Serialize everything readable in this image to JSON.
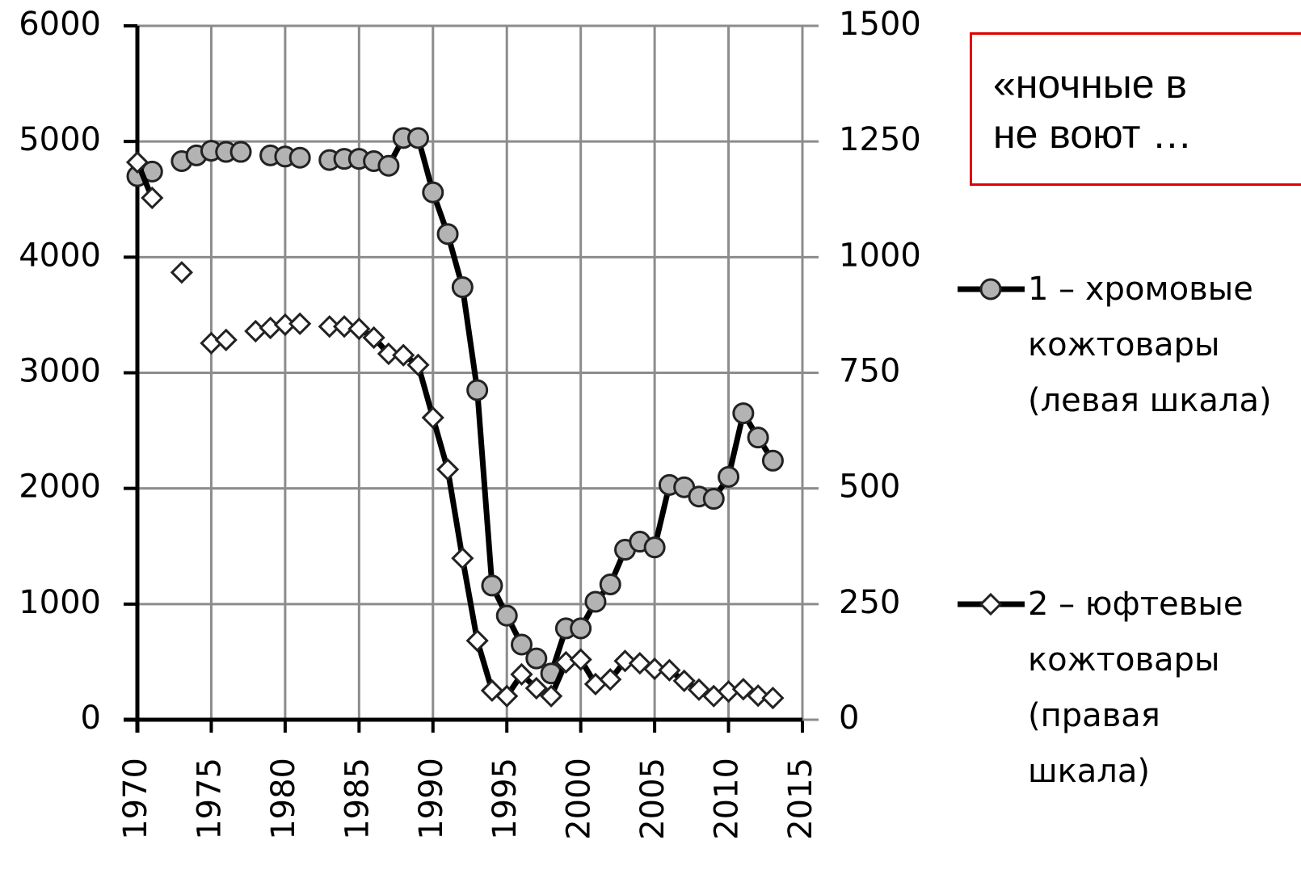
{
  "chart_data": {
    "type": "line",
    "note": [
      "«ночные в",
      "не воют …"
    ],
    "x": [
      1970,
      1971,
      1972,
      1973,
      1974,
      1975,
      1976,
      1977,
      1978,
      1979,
      1980,
      1981,
      1982,
      1983,
      1984,
      1985,
      1986,
      1987,
      1988,
      1989,
      1990,
      1991,
      1992,
      1993,
      1994,
      1995,
      1996,
      1997,
      1998,
      1999,
      2000,
      2001,
      2002,
      2003,
      2004,
      2005,
      2006,
      2007,
      2008,
      2009,
      2010,
      2011,
      2012,
      2013
    ],
    "series": [
      {
        "name": "1 – хромовые кожтовары (левая шкала)",
        "color": "#b3b3b3",
        "marker": "circle",
        "axis": "y",
        "values": [
          4700,
          4740,
          null,
          4830,
          4880,
          4920,
          4910,
          4910,
          null,
          4880,
          4870,
          4860,
          null,
          4840,
          4850,
          4850,
          4830,
          4790,
          5030,
          5030,
          4560,
          4200,
          3740,
          2850,
          1160,
          900,
          650,
          530,
          400,
          790,
          790,
          1020,
          1170,
          1470,
          1540,
          1490,
          2030,
          2010,
          1930,
          1910,
          2100,
          2650,
          2440,
          2240
        ]
      },
      {
        "name": "2 – юфтевые кожтовары (правая шкала)",
        "color": "#ffffff",
        "marker": "diamond",
        "axis": "y2",
        "values": [
          1205,
          1128,
          null,
          967,
          null,
          814,
          821,
          null,
          840,
          847,
          854,
          856,
          null,
          850,
          850,
          845,
          826,
          791,
          788,
          767,
          653,
          541,
          349,
          171,
          63,
          51,
          98,
          68,
          51,
          124,
          130,
          77,
          87,
          127,
          122,
          110,
          107,
          84,
          65,
          51,
          61,
          66,
          52,
          47
        ]
      }
    ],
    "xlim": [
      1970,
      2015
    ],
    "xticks": [
      1970,
      1975,
      1980,
      1985,
      1990,
      1995,
      2000,
      2005,
      2010,
      2015
    ],
    "ylim": [
      0,
      6000
    ],
    "yticks": [
      0,
      1000,
      2000,
      3000,
      4000,
      5000,
      6000
    ],
    "y2lim": [
      0,
      1500
    ],
    "y2ticks": [
      0,
      250,
      500,
      750,
      1000,
      1250,
      1500
    ],
    "grid": true
  }
}
